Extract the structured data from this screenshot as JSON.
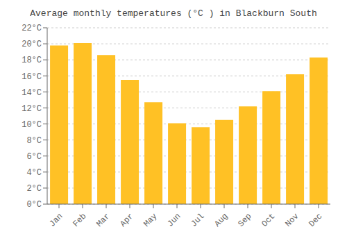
{
  "chart_data": {
    "type": "bar",
    "title": "Average monthly temperatures (°C ) in Blackburn South",
    "categories": [
      "Jan",
      "Feb",
      "Mar",
      "Apr",
      "May",
      "Jun",
      "Jul",
      "Aug",
      "Sep",
      "Oct",
      "Nov",
      "Dec"
    ],
    "values": [
      19.8,
      20.1,
      18.6,
      15.5,
      12.7,
      10.1,
      9.6,
      10.5,
      12.2,
      14.1,
      16.2,
      18.3
    ],
    "color": "#FFC125",
    "ylim": [
      0,
      22
    ],
    "yticks": [
      {
        "value": 0,
        "label": "0°C"
      },
      {
        "value": 2,
        "label": "2°C"
      },
      {
        "value": 4,
        "label": "4°C"
      },
      {
        "value": 6,
        "label": "6°C"
      },
      {
        "value": 8,
        "label": "8°C"
      },
      {
        "value": 10,
        "label": "10°C"
      },
      {
        "value": 12,
        "label": "12°C"
      },
      {
        "value": 14,
        "label": "14°C"
      },
      {
        "value": 16,
        "label": "16°C"
      },
      {
        "value": 18,
        "label": "18°C"
      },
      {
        "value": 20,
        "label": "20°C"
      },
      {
        "value": 22,
        "label": "22°C"
      }
    ],
    "grid": true
  }
}
